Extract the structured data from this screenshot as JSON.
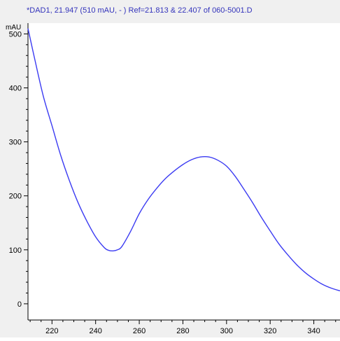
{
  "chart_data": {
    "type": "line",
    "title": "*DAD1, 21.947 (510 mAU, - ) Ref=21.813 & 22.407 of 060-5001.D",
    "ylabel": "mAU",
    "xlabel": "",
    "xlim": [
      209,
      352
    ],
    "ylim": [
      -30,
      520
    ],
    "grid": false,
    "colors": {
      "title": "#3333bb",
      "line": "#3b3bf2",
      "axis": "#000000",
      "background": "#ffffff",
      "panel": "#f0f0f0"
    },
    "x_ticks": [
      220,
      240,
      260,
      280,
      300,
      320,
      340
    ],
    "x_tick_labels": [
      "220",
      "240",
      "260",
      "280",
      "300",
      "320",
      "340"
    ],
    "y_ticks": [
      0,
      100,
      200,
      300,
      400,
      500
    ],
    "y_tick_labels": [
      "0",
      "100",
      "200",
      "300",
      "400",
      "500"
    ],
    "series": [
      {
        "x": [
          209,
          212,
          216,
          220,
          224,
          228,
          232,
          236,
          240,
          244,
          246,
          248,
          250,
          252,
          256,
          260,
          264,
          268,
          272,
          276,
          280,
          284,
          288,
          292,
          296,
          300,
          304,
          308,
          312,
          316,
          320,
          324,
          328,
          332,
          336,
          340,
          344,
          348,
          352
        ],
        "y": [
          510,
          455,
          385,
          330,
          275,
          228,
          187,
          153,
          124,
          104,
          99,
          98,
          100,
          106,
          134,
          167,
          193,
          214,
          232,
          246,
          258,
          267,
          272,
          272,
          266,
          255,
          236,
          212,
          187,
          160,
          135,
          111,
          91,
          73,
          58,
          46,
          36,
          29,
          24
        ]
      }
    ]
  }
}
